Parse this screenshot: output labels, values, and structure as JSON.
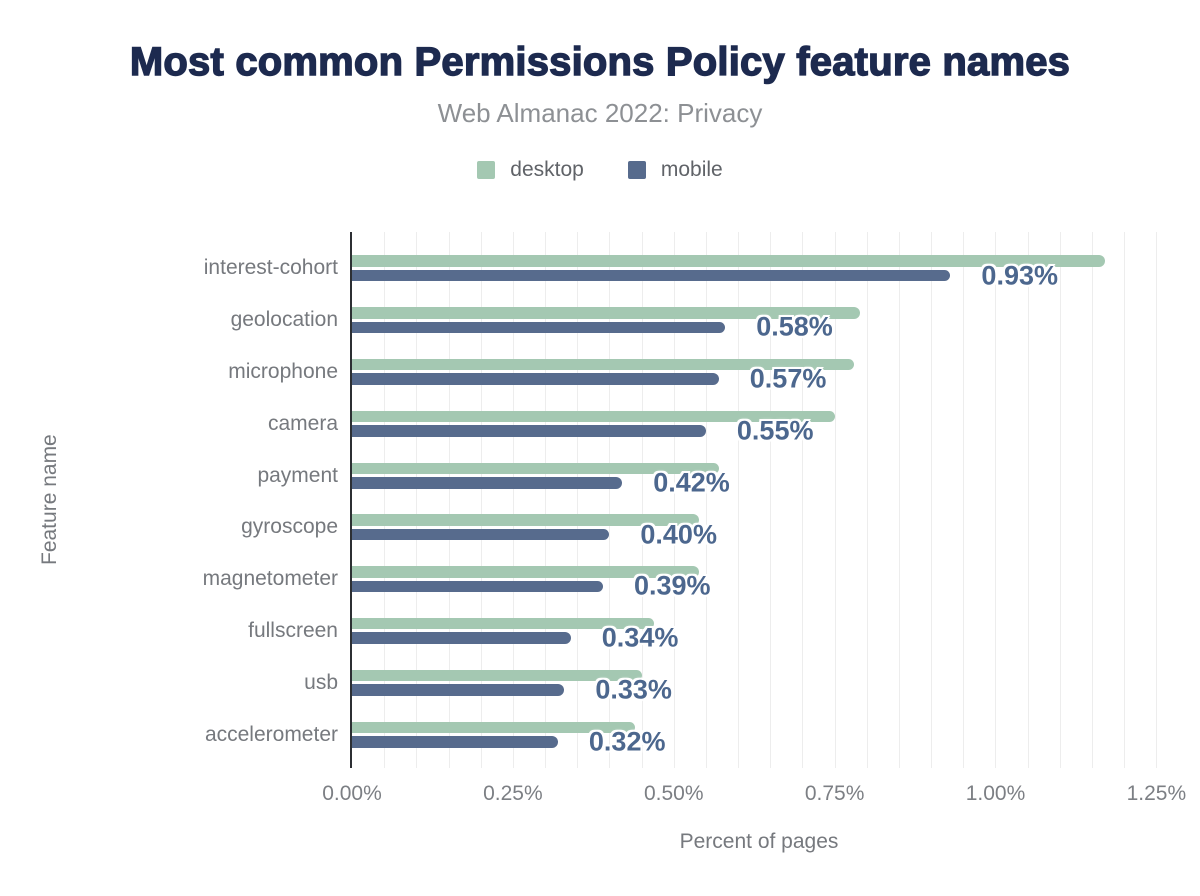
{
  "header": {
    "title": "Most common Permissions Policy feature names",
    "subtitle": "Web Almanac 2022: Privacy"
  },
  "chart_data": {
    "type": "bar",
    "orientation": "horizontal",
    "title": "Most common Permissions Policy feature names",
    "subtitle": "Web Almanac 2022: Privacy",
    "categories": [
      "interest-cohort",
      "geolocation",
      "microphone",
      "camera",
      "payment",
      "gyroscope",
      "magnetometer",
      "fullscreen",
      "usb",
      "accelerometer"
    ],
    "series": [
      {
        "name": "desktop",
        "color": "#a4c8b2",
        "values": [
          1.17,
          0.79,
          0.78,
          0.75,
          0.57,
          0.54,
          0.54,
          0.47,
          0.45,
          0.44
        ]
      },
      {
        "name": "mobile",
        "color": "#576b8d",
        "values": [
          0.93,
          0.58,
          0.57,
          0.55,
          0.42,
          0.4,
          0.39,
          0.34,
          0.33,
          0.32
        ]
      }
    ],
    "data_labels": [
      "0.93%",
      "0.58%",
      "0.57%",
      "0.55%",
      "0.42%",
      "0.40%",
      "0.39%",
      "0.34%",
      "0.33%",
      "0.32%"
    ],
    "data_label_series": "mobile",
    "xlabel": "Percent of pages",
    "ylabel": "Feature name",
    "xlim": [
      0,
      1.265
    ],
    "xticks": [
      "0.00%",
      "0.25%",
      "0.50%",
      "0.75%",
      "1.00%",
      "1.25%"
    ],
    "xtick_values": [
      0,
      0.25,
      0.5,
      0.75,
      1.0,
      1.25
    ],
    "grid": "vertical minor gridlines every 0.05%",
    "legend_position": "top-center"
  },
  "colors": {
    "background": "#ffffff",
    "title": "#1d2a4f",
    "subtitle": "#8d9094",
    "axis_text": "#76797e",
    "tick_text": "#7c7f84",
    "legend_text": "#606368",
    "desktop_bar": "#a4c8b2",
    "mobile_bar": "#576b8d",
    "value_label": "#4c678e",
    "axis_line": "#2c2f33",
    "gridline": "#ededed"
  }
}
